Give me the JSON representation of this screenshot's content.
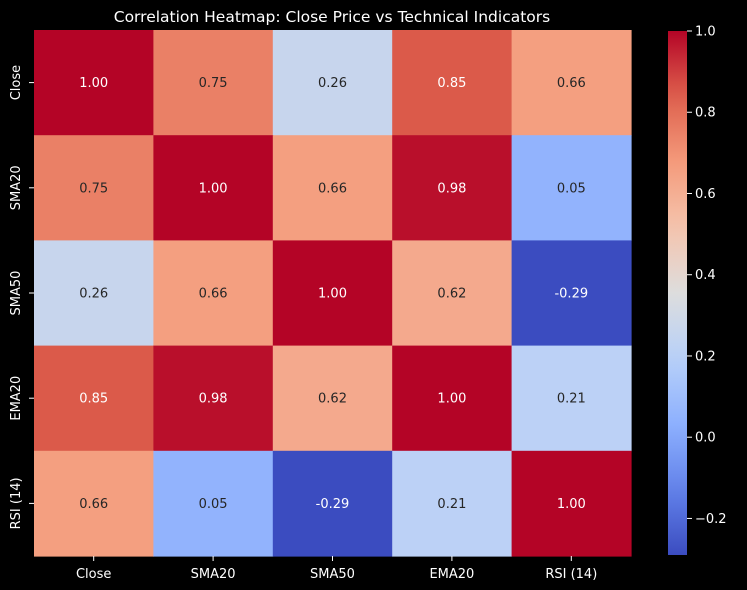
{
  "chart_data": {
    "type": "heatmap",
    "title": "Correlation Heatmap: Close Price vs Technical Indicators",
    "xlabel": "",
    "ylabel": "",
    "x_categories": [
      "Close",
      "SMA20",
      "SMA50",
      "EMA20",
      "RSI (14)"
    ],
    "y_categories": [
      "Close",
      "SMA20",
      "SMA50",
      "EMA20",
      "RSI (14)"
    ],
    "values": [
      [
        1.0,
        0.75,
        0.26,
        0.85,
        0.66
      ],
      [
        0.75,
        1.0,
        0.66,
        0.98,
        0.05
      ],
      [
        0.26,
        0.66,
        1.0,
        0.62,
        -0.29
      ],
      [
        0.85,
        0.98,
        0.62,
        1.0,
        0.21
      ],
      [
        0.66,
        0.05,
        -0.29,
        0.21,
        1.0
      ]
    ],
    "value_format": "2 decimals",
    "colormap": "coolwarm",
    "color_range": [
      -0.29,
      1.0
    ],
    "colorbar_ticks": [
      "1.0",
      "0.8",
      "0.6",
      "0.4",
      "0.2",
      "0.0",
      "−0.2"
    ],
    "colorbar_tick_values": [
      1.0,
      0.8,
      0.6,
      0.4,
      0.2,
      0.0,
      -0.2
    ],
    "colorbar_placement": "right",
    "grid": false,
    "colors": {
      "background": "#000000",
      "text": "#ffffff"
    }
  }
}
